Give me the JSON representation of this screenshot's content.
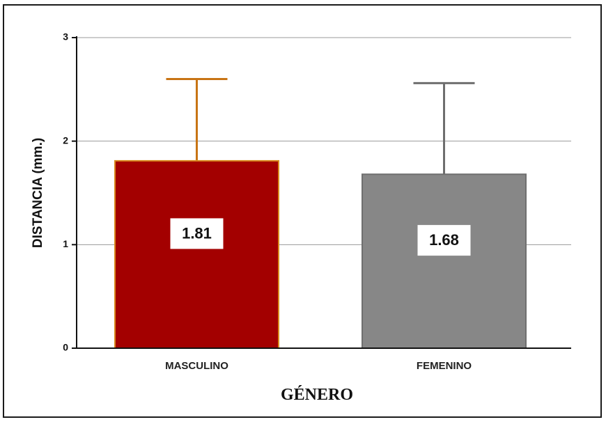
{
  "chart_data": {
    "type": "bar",
    "categories": [
      "MASCULINO",
      "FEMENINO"
    ],
    "values": [
      1.81,
      1.68
    ],
    "error_upper": [
      2.6,
      2.56
    ],
    "data_labels": [
      "1.81",
      "1.68"
    ],
    "xlabel": "GÉNERO",
    "ylabel": "DISTANCIA (mm.)",
    "ylim": [
      0,
      3
    ],
    "yticks": [
      "0",
      "1",
      "2",
      "3"
    ],
    "grid": true,
    "colors": {
      "bars": [
        "#a30000",
        "#878787"
      ],
      "bar_edges": [
        "#d98a1e",
        "#6f6f6f"
      ],
      "error_bars": [
        "#c87414",
        "#6e6e6e"
      ],
      "grid": "#9a9a9a"
    }
  }
}
